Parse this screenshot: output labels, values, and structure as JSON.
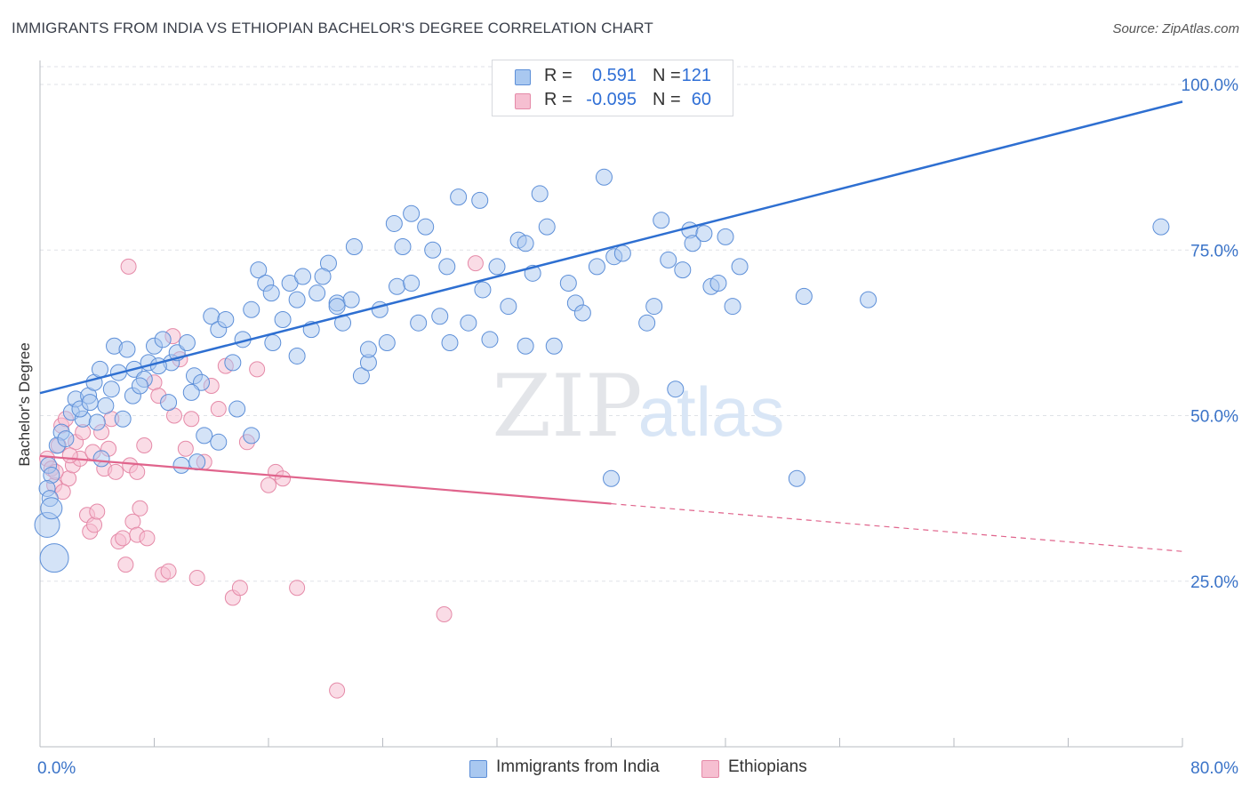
{
  "header": {
    "title": "IMMIGRANTS FROM INDIA VS ETHIOPIAN BACHELOR'S DEGREE CORRELATION CHART",
    "source": "Source: ZipAtlas.com"
  },
  "watermark": {
    "zip": "ZIP",
    "atlas": "atlas"
  },
  "legend_top": {
    "rows": [
      {
        "r_label": "R =",
        "r_value": "0.591",
        "n_label": "N =",
        "n_value": "121"
      },
      {
        "r_label": "R =",
        "r_value": "-0.095",
        "n_label": "N =",
        "n_value": "60"
      }
    ]
  },
  "legend_bottom": {
    "items": [
      {
        "label": "Immigrants from India"
      },
      {
        "label": "Ethiopians"
      }
    ]
  },
  "colors": {
    "india_fill": "#a9c8f0",
    "india_stroke": "#5d8fd8",
    "india_line": "#2e6fd1",
    "eth_fill": "#f6bfd1",
    "eth_stroke": "#e58aa8",
    "eth_line": "#e0648c",
    "tick_text": "#3a73c8",
    "grid": "#dfe2e7"
  },
  "chart_data": {
    "type": "scatter",
    "title": "IMMIGRANTS FROM INDIA VS ETHIOPIAN BACHELOR'S DEGREE CORRELATION CHART",
    "xlabel": "",
    "ylabel": "Bachelor's Degree",
    "xlim": [
      0,
      80
    ],
    "ylim": [
      0,
      105
    ],
    "x_tick_labels": [
      "0.0%",
      "80.0%"
    ],
    "y_ticks": [
      25,
      50,
      75,
      100
    ],
    "y_tick_labels": [
      "25.0%",
      "50.0%",
      "75.0%",
      "100.0%"
    ],
    "grid": true,
    "legend_position": "bottom",
    "series": [
      {
        "name": "Immigrants from India",
        "R": 0.591,
        "N": 121,
        "trend": {
          "x0": 0,
          "y0": 53.4,
          "x1": 80,
          "y1": 97.4
        },
        "points": [
          [
            0.6,
            42.5
          ],
          [
            0.8,
            41.0
          ],
          [
            0.5,
            39.0
          ],
          [
            0.7,
            37.5
          ],
          [
            1.5,
            47.5
          ],
          [
            1.2,
            45.5
          ],
          [
            2.2,
            50.5
          ],
          [
            2.5,
            52.5
          ],
          [
            3.0,
            49.5
          ],
          [
            2.8,
            51.0
          ],
          [
            3.4,
            53.0
          ],
          [
            3.8,
            55.0
          ],
          [
            4.2,
            57.0
          ],
          [
            4.6,
            51.5
          ],
          [
            5.0,
            54.0
          ],
          [
            5.5,
            56.5
          ],
          [
            5.2,
            60.5
          ],
          [
            6.1,
            60.0
          ],
          [
            6.6,
            57.0
          ],
          [
            7.3,
            55.5
          ],
          [
            8.0,
            60.5
          ],
          [
            7.6,
            58.0
          ],
          [
            8.6,
            61.5
          ],
          [
            9.2,
            58.0
          ],
          [
            9.6,
            59.5
          ],
          [
            10.3,
            61.0
          ],
          [
            10.8,
            56.0
          ],
          [
            11.3,
            55.0
          ],
          [
            12.0,
            65.0
          ],
          [
            12.5,
            63.0
          ],
          [
            13.0,
            64.5
          ],
          [
            13.5,
            58.0
          ],
          [
            14.2,
            61.5
          ],
          [
            14.8,
            66.0
          ],
          [
            15.3,
            72.0
          ],
          [
            15.8,
            70.0
          ],
          [
            16.2,
            68.5
          ],
          [
            17.0,
            64.5
          ],
          [
            17.5,
            70.0
          ],
          [
            18.0,
            67.5
          ],
          [
            18.4,
            71.0
          ],
          [
            19.0,
            63.0
          ],
          [
            19.4,
            68.5
          ],
          [
            20.2,
            73.0
          ],
          [
            20.8,
            67.0
          ],
          [
            21.2,
            64.0
          ],
          [
            21.8,
            67.5
          ],
          [
            22.5,
            56.0
          ],
          [
            23.0,
            58.0
          ],
          [
            23.8,
            66.0
          ],
          [
            24.3,
            61.0
          ],
          [
            25.0,
            69.5
          ],
          [
            25.4,
            75.5
          ],
          [
            26.0,
            80.5
          ],
          [
            26.5,
            64.0
          ],
          [
            27.0,
            78.5
          ],
          [
            27.5,
            75.0
          ],
          [
            28.0,
            65.0
          ],
          [
            28.7,
            61.0
          ],
          [
            29.3,
            83.0
          ],
          [
            30.0,
            64.0
          ],
          [
            30.8,
            82.5
          ],
          [
            31.5,
            61.5
          ],
          [
            32.0,
            72.5
          ],
          [
            32.8,
            66.5
          ],
          [
            33.5,
            76.5
          ],
          [
            34.0,
            60.5
          ],
          [
            34.5,
            71.5
          ],
          [
            35.0,
            83.5
          ],
          [
            35.5,
            78.5
          ],
          [
            36.0,
            60.5
          ],
          [
            37.5,
            67.0
          ],
          [
            38.0,
            65.5
          ],
          [
            39.0,
            72.5
          ],
          [
            39.5,
            86.0
          ],
          [
            40.2,
            74.0
          ],
          [
            40.8,
            74.5
          ],
          [
            42.5,
            64.0
          ],
          [
            43.5,
            79.5
          ],
          [
            44.5,
            54.0
          ],
          [
            45.0,
            72.0
          ],
          [
            45.5,
            78.0
          ],
          [
            45.7,
            76.0
          ],
          [
            47.0,
            69.5
          ],
          [
            47.5,
            70.0
          ],
          [
            48.0,
            77.0
          ],
          [
            48.5,
            66.5
          ],
          [
            53.5,
            68.0
          ],
          [
            40.0,
            40.5
          ],
          [
            53.0,
            40.5
          ],
          [
            4.3,
            43.5
          ],
          [
            6.5,
            53.0
          ],
          [
            9.0,
            52.0
          ],
          [
            10.6,
            53.5
          ],
          [
            11.5,
            47.0
          ],
          [
            12.5,
            46.0
          ],
          [
            13.8,
            51.0
          ],
          [
            14.8,
            47.0
          ],
          [
            16.3,
            61.0
          ],
          [
            18.0,
            59.0
          ],
          [
            22.0,
            75.5
          ],
          [
            24.8,
            79.0
          ],
          [
            1.0,
            28.5
          ],
          [
            0.5,
            33.5
          ],
          [
            0.8,
            36.0
          ],
          [
            1.8,
            46.5
          ],
          [
            3.5,
            52.0
          ],
          [
            4.0,
            49.0
          ],
          [
            5.8,
            49.5
          ],
          [
            7.0,
            54.5
          ],
          [
            8.3,
            57.5
          ],
          [
            9.9,
            42.5
          ],
          [
            11.0,
            43.0
          ],
          [
            19.8,
            71.0
          ],
          [
            20.8,
            66.5
          ],
          [
            23.0,
            60.0
          ],
          [
            26.0,
            70.0
          ],
          [
            28.5,
            72.5
          ],
          [
            31.0,
            69.0
          ],
          [
            34.0,
            76.0
          ],
          [
            37.0,
            70.0
          ],
          [
            43.0,
            66.5
          ],
          [
            44.0,
            73.5
          ],
          [
            46.5,
            77.5
          ],
          [
            49.0,
            72.5
          ],
          [
            78.5,
            78.5
          ],
          [
            58.0,
            67.5
          ]
        ],
        "sizes_note": "larger circles near x=0 at y=28 and y=34"
      },
      {
        "name": "Ethiopians",
        "R": -0.095,
        "N": 60,
        "trend_solid": {
          "x0": 0,
          "y0": 43.9,
          "x1": 40,
          "y1": 36.7
        },
        "trend_dashed": {
          "x0": 40,
          "y0": 36.7,
          "x1": 80,
          "y1": 29.5
        },
        "points": [
          [
            0.5,
            43.5
          ],
          [
            0.8,
            42.0
          ],
          [
            1.0,
            39.5
          ],
          [
            1.3,
            45.5
          ],
          [
            1.5,
            48.5
          ],
          [
            1.8,
            49.5
          ],
          [
            2.0,
            40.5
          ],
          [
            2.3,
            42.5
          ],
          [
            2.5,
            46.0
          ],
          [
            2.8,
            43.5
          ],
          [
            3.0,
            47.5
          ],
          [
            3.3,
            35.0
          ],
          [
            3.5,
            32.5
          ],
          [
            3.8,
            33.5
          ],
          [
            4.0,
            35.5
          ],
          [
            4.3,
            47.5
          ],
          [
            4.5,
            42.0
          ],
          [
            4.8,
            45.0
          ],
          [
            5.0,
            49.5
          ],
          [
            5.3,
            41.5
          ],
          [
            5.5,
            31.0
          ],
          [
            5.8,
            31.5
          ],
          [
            6.0,
            27.5
          ],
          [
            6.3,
            42.5
          ],
          [
            6.5,
            34.0
          ],
          [
            6.8,
            32.0
          ],
          [
            7.0,
            36.0
          ],
          [
            7.3,
            45.5
          ],
          [
            7.5,
            31.5
          ],
          [
            8.0,
            55.0
          ],
          [
            8.3,
            53.0
          ],
          [
            8.6,
            26.0
          ],
          [
            9.0,
            26.5
          ],
          [
            9.4,
            50.0
          ],
          [
            9.8,
            58.5
          ],
          [
            10.2,
            45.0
          ],
          [
            10.6,
            49.5
          ],
          [
            11.0,
            25.5
          ],
          [
            11.5,
            43.0
          ],
          [
            12.0,
            54.5
          ],
          [
            12.5,
            51.0
          ],
          [
            13.0,
            57.5
          ],
          [
            13.5,
            22.5
          ],
          [
            14.0,
            24.0
          ],
          [
            14.5,
            46.0
          ],
          [
            15.2,
            57.0
          ],
          [
            16.0,
            39.5
          ],
          [
            16.5,
            41.5
          ],
          [
            17.0,
            40.5
          ],
          [
            18.0,
            24.0
          ],
          [
            20.8,
            8.5
          ],
          [
            28.3,
            20.0
          ],
          [
            30.5,
            73.0
          ],
          [
            6.2,
            72.5
          ],
          [
            1.1,
            41.5
          ],
          [
            1.6,
            38.5
          ],
          [
            2.1,
            44.0
          ],
          [
            3.7,
            44.5
          ],
          [
            6.8,
            41.5
          ],
          [
            9.3,
            62.0
          ]
        ]
      }
    ]
  }
}
